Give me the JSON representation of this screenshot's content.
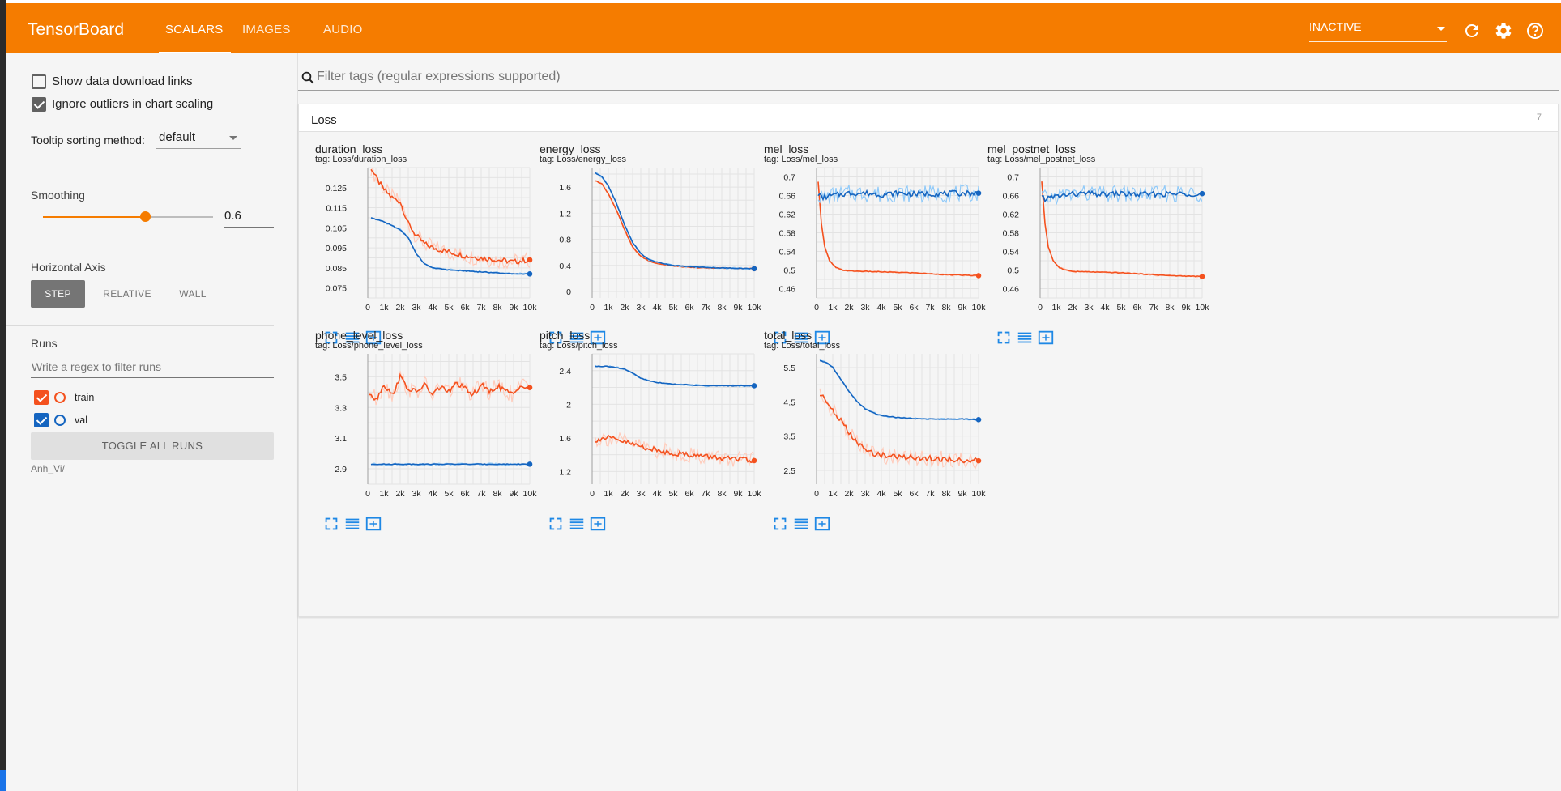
{
  "app": {
    "title": "TensorBoard"
  },
  "nav": {
    "tabs": [
      {
        "label": "SCALARS"
      },
      {
        "label": "IMAGES"
      },
      {
        "label": "AUDIO"
      }
    ]
  },
  "header": {
    "status_select": "INACTIVE",
    "icons": [
      "refresh-icon",
      "settings-icon",
      "help-icon"
    ]
  },
  "sidebar": {
    "show_download": {
      "label": "Show data download links",
      "checked": false
    },
    "ignore_outliers": {
      "label": "Ignore outliers in chart scaling",
      "checked": true
    },
    "tooltip_sort": {
      "label": "Tooltip sorting method:",
      "value": "default"
    },
    "smoothing": {
      "label": "Smoothing",
      "value": "0.6",
      "fraction": 0.6
    },
    "horizontal_axis": {
      "label": "Horizontal Axis",
      "options": [
        "STEP",
        "RELATIVE",
        "WALL"
      ],
      "selected": "STEP"
    },
    "runs": {
      "label": "Runs",
      "filter_placeholder": "Write a regex to filter runs",
      "items": [
        {
          "name": "train",
          "checked": true,
          "color": "#f4511e"
        },
        {
          "name": "val",
          "checked": true,
          "color": "#1565c0"
        }
      ],
      "toggle_all": "TOGGLE ALL RUNS",
      "log_dir": "Anh_Vi/"
    }
  },
  "main": {
    "filter_placeholder": "Filter tags (regular expressions supported)",
    "group": {
      "title": "Loss",
      "count": "7"
    }
  },
  "colors": {
    "accent": "#f57c00",
    "train": "#f4511e",
    "val": "#1565c0",
    "val_raw": "#90caf9",
    "train_raw": "#ffccbc"
  },
  "chart_data": [
    {
      "type": "line",
      "title": "duration_loss",
      "tag": "tag: Loss/duration_loss",
      "xlim": [
        0,
        10000
      ],
      "ylim": [
        0.07,
        0.135
      ],
      "x_ticks": [
        "0",
        "1k",
        "2k",
        "3k",
        "4k",
        "5k",
        "6k",
        "7k",
        "8k",
        "9k",
        "10k"
      ],
      "y_ticks": [
        0.075,
        0.085,
        0.095,
        0.105,
        0.115,
        0.125
      ],
      "y_tick_labels": [
        "0.075",
        "0.085",
        "0.095",
        "0.105",
        "0.115",
        "0.125"
      ],
      "series": [
        {
          "name": "train",
          "noisy": true,
          "x": [
            200,
            500,
            1000,
            1500,
            2000,
            2500,
            3000,
            3500,
            4000,
            4500,
            5000,
            6000,
            7000,
            8000,
            9000,
            10000
          ],
          "values": [
            0.135,
            0.13,
            0.124,
            0.12,
            0.118,
            0.107,
            0.101,
            0.097,
            0.095,
            0.094,
            0.093,
            0.091,
            0.09,
            0.089,
            0.088,
            0.089
          ]
        },
        {
          "name": "val",
          "noisy": false,
          "x": [
            200,
            1000,
            2000,
            2500,
            3000,
            3500,
            4000,
            5000,
            6000,
            7000,
            8000,
            9000,
            10000
          ],
          "values": [
            0.11,
            0.108,
            0.104,
            0.1,
            0.092,
            0.087,
            0.085,
            0.084,
            0.0835,
            0.083,
            0.0825,
            0.082,
            0.082
          ]
        }
      ]
    },
    {
      "type": "line",
      "title": "energy_loss",
      "tag": "tag: Loss/energy_loss",
      "xlim": [
        0,
        10000
      ],
      "ylim": [
        -0.1,
        1.9
      ],
      "x_ticks": [
        "0",
        "1k",
        "2k",
        "3k",
        "4k",
        "5k",
        "6k",
        "7k",
        "8k",
        "9k",
        "10k"
      ],
      "y_ticks": [
        0,
        0.4,
        0.8,
        1.2,
        1.6
      ],
      "y_tick_labels": [
        "0",
        "0.4",
        "0.8",
        "1.2",
        "1.6"
      ],
      "series": [
        {
          "name": "train",
          "noisy": false,
          "x": [
            200,
            600,
            1000,
            1500,
            2000,
            2500,
            3000,
            3500,
            4000,
            5000,
            6000,
            7000,
            8000,
            9000,
            10000
          ],
          "values": [
            1.7,
            1.65,
            1.5,
            1.25,
            0.95,
            0.68,
            0.54,
            0.47,
            0.43,
            0.39,
            0.37,
            0.36,
            0.36,
            0.355,
            0.35
          ]
        },
        {
          "name": "val",
          "noisy": false,
          "x": [
            200,
            600,
            1000,
            1500,
            2000,
            2500,
            3000,
            3500,
            4000,
            5000,
            6000,
            7000,
            8000,
            9000,
            10000
          ],
          "values": [
            1.82,
            1.76,
            1.62,
            1.35,
            1.02,
            0.75,
            0.58,
            0.49,
            0.45,
            0.4,
            0.38,
            0.37,
            0.36,
            0.355,
            0.35
          ]
        }
      ]
    },
    {
      "type": "line",
      "title": "mel_loss",
      "tag": "tag: Loss/mel_loss",
      "xlim": [
        0,
        10000
      ],
      "ylim": [
        0.44,
        0.72
      ],
      "x_ticks": [
        "0",
        "1k",
        "2k",
        "3k",
        "4k",
        "5k",
        "6k",
        "7k",
        "8k",
        "9k",
        "10k"
      ],
      "y_ticks": [
        0.46,
        0.5,
        0.54,
        0.58,
        0.62,
        0.66,
        0.7
      ],
      "y_tick_labels": [
        "0.46",
        "0.5",
        "0.54",
        "0.58",
        "0.62",
        "0.66",
        "0.7"
      ],
      "series": [
        {
          "name": "train",
          "noisy": false,
          "x": [
            100,
            300,
            500,
            800,
            1200,
            1600,
            2000,
            3000,
            4000,
            5000,
            6000,
            7000,
            8000,
            9000,
            10000
          ],
          "values": [
            0.69,
            0.6,
            0.55,
            0.52,
            0.505,
            0.5,
            0.498,
            0.497,
            0.496,
            0.495,
            0.494,
            0.492,
            0.49,
            0.489,
            0.488
          ]
        },
        {
          "name": "val",
          "noisy": true,
          "x": [
            100,
            300,
            1000,
            2000,
            3000,
            4000,
            5000,
            6000,
            7000,
            8000,
            9000,
            10000
          ],
          "values": [
            0.665,
            0.655,
            0.66,
            0.665,
            0.665,
            0.662,
            0.665,
            0.663,
            0.664,
            0.664,
            0.665,
            0.665
          ]
        }
      ]
    },
    {
      "type": "line",
      "title": "mel_postnet_loss",
      "tag": "tag: Loss/mel_postnet_loss",
      "xlim": [
        0,
        10000
      ],
      "ylim": [
        0.44,
        0.72
      ],
      "x_ticks": [
        "0",
        "1k",
        "2k",
        "3k",
        "4k",
        "5k",
        "6k",
        "7k",
        "8k",
        "9k",
        "10k"
      ],
      "y_ticks": [
        0.46,
        0.5,
        0.54,
        0.58,
        0.62,
        0.66,
        0.7
      ],
      "y_tick_labels": [
        "0.46",
        "0.5",
        "0.54",
        "0.58",
        "0.62",
        "0.66",
        "0.7"
      ],
      "series": [
        {
          "name": "train",
          "noisy": false,
          "x": [
            100,
            300,
            500,
            800,
            1200,
            1600,
            2000,
            3000,
            4000,
            5000,
            6000,
            7000,
            8000,
            9000,
            10000
          ],
          "values": [
            0.69,
            0.6,
            0.55,
            0.52,
            0.505,
            0.5,
            0.497,
            0.496,
            0.495,
            0.494,
            0.492,
            0.49,
            0.488,
            0.487,
            0.486
          ]
        },
        {
          "name": "val",
          "noisy": true,
          "x": [
            100,
            300,
            1000,
            2000,
            3000,
            4000,
            5000,
            6000,
            7000,
            8000,
            9000,
            10000
          ],
          "values": [
            0.66,
            0.653,
            0.658,
            0.663,
            0.664,
            0.662,
            0.664,
            0.662,
            0.663,
            0.663,
            0.664,
            0.664
          ]
        }
      ]
    },
    {
      "type": "line",
      "title": "phone_level_loss",
      "tag": "tag: Loss/phone_level_loss",
      "xlim": [
        0,
        10000
      ],
      "ylim": [
        2.8,
        3.65
      ],
      "x_ticks": [
        "0",
        "1k",
        "2k",
        "3k",
        "4k",
        "5k",
        "6k",
        "7k",
        "8k",
        "9k",
        "10k"
      ],
      "y_ticks": [
        2.9,
        3.1,
        3.3,
        3.5
      ],
      "y_tick_labels": [
        "2.9",
        "3.1",
        "3.3",
        "3.5"
      ],
      "series": [
        {
          "name": "train",
          "noisy": true,
          "x": [
            100,
            500,
            1000,
            1500,
            2000,
            2500,
            3000,
            3500,
            4000,
            4500,
            5000,
            5500,
            6000,
            6500,
            7000,
            7500,
            8000,
            8500,
            9000,
            9500,
            10000
          ],
          "values": [
            3.4,
            3.35,
            3.45,
            3.38,
            3.5,
            3.42,
            3.4,
            3.45,
            3.38,
            3.44,
            3.4,
            3.46,
            3.42,
            3.38,
            3.45,
            3.4,
            3.44,
            3.41,
            3.38,
            3.45,
            3.43
          ]
        },
        {
          "name": "val",
          "noisy": false,
          "x": [
            200,
            10000
          ],
          "values": [
            2.93,
            2.93
          ]
        }
      ]
    },
    {
      "type": "line",
      "title": "pitch_loss",
      "tag": "tag: Loss/pitch_loss",
      "xlim": [
        0,
        10000
      ],
      "ylim": [
        1.05,
        2.6
      ],
      "x_ticks": [
        "0",
        "1k",
        "2k",
        "3k",
        "4k",
        "5k",
        "6k",
        "7k",
        "8k",
        "9k",
        "10k"
      ],
      "y_ticks": [
        1.2,
        1.6,
        2,
        2.4
      ],
      "y_tick_labels": [
        "1.2",
        "1.6",
        "2",
        "2.4"
      ],
      "series": [
        {
          "name": "train",
          "noisy": true,
          "x": [
            200,
            1000,
            2000,
            3000,
            4000,
            5000,
            6000,
            7000,
            8000,
            9000,
            10000
          ],
          "values": [
            1.58,
            1.6,
            1.55,
            1.5,
            1.45,
            1.42,
            1.4,
            1.38,
            1.36,
            1.34,
            1.33
          ]
        },
        {
          "name": "val",
          "noisy": false,
          "x": [
            200,
            1000,
            2000,
            2500,
            3000,
            3500,
            4000,
            5000,
            6000,
            7000,
            8000,
            9000,
            10000
          ],
          "values": [
            2.45,
            2.45,
            2.42,
            2.37,
            2.31,
            2.28,
            2.26,
            2.24,
            2.23,
            2.22,
            2.22,
            2.22,
            2.22
          ]
        }
      ]
    },
    {
      "type": "line",
      "title": "total_loss",
      "tag": "tag: Loss/total_loss",
      "xlim": [
        0,
        10000
      ],
      "ylim": [
        2.1,
        5.9
      ],
      "x_ticks": [
        "0",
        "1k",
        "2k",
        "3k",
        "4k",
        "5k",
        "6k",
        "7k",
        "8k",
        "9k",
        "10k"
      ],
      "y_ticks": [
        2.5,
        3.5,
        4.5,
        5.5
      ],
      "y_tick_labels": [
        "2.5",
        "3.5",
        "4.5",
        "5.5"
      ],
      "series": [
        {
          "name": "train",
          "noisy": true,
          "x": [
            200,
            600,
            1000,
            1500,
            2000,
            2500,
            3000,
            3500,
            4000,
            5000,
            6000,
            7000,
            8000,
            9000,
            10000
          ],
          "values": [
            4.75,
            4.5,
            4.25,
            3.95,
            3.6,
            3.3,
            3.1,
            3.0,
            2.95,
            2.9,
            2.88,
            2.85,
            2.82,
            2.8,
            2.78
          ]
        },
        {
          "name": "val",
          "noisy": false,
          "x": [
            200,
            600,
            1000,
            1500,
            2000,
            2500,
            3000,
            3500,
            4000,
            5000,
            6000,
            7000,
            8000,
            9000,
            10000
          ],
          "values": [
            5.7,
            5.65,
            5.5,
            5.15,
            4.8,
            4.5,
            4.3,
            4.18,
            4.1,
            4.04,
            4.01,
            4.0,
            4.0,
            4.0,
            3.98
          ]
        }
      ]
    }
  ]
}
